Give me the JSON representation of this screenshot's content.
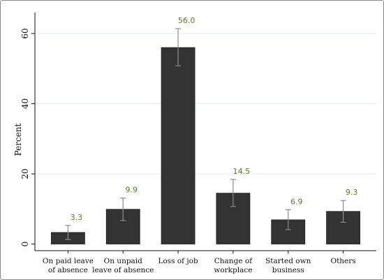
{
  "chart_data": {
    "type": "bar",
    "title": "",
    "xlabel": "",
    "ylabel": "Percent",
    "ylim": [
      0,
      65
    ],
    "yticks": [
      0,
      20,
      40,
      60
    ],
    "grid": true,
    "categories": [
      [
        "On paid leave",
        "of absence"
      ],
      [
        "On unpaid",
        "leave of absence"
      ],
      [
        "Loss of job"
      ],
      [
        "Change of",
        "workplace"
      ],
      [
        "Started own",
        "business"
      ],
      [
        "Others"
      ]
    ],
    "values": [
      3.3,
      9.9,
      56.0,
      14.5,
      6.9,
      9.3
    ],
    "value_labels": [
      "3.3",
      "9.9",
      "56.0",
      "14.5",
      "6.9",
      "9.3"
    ],
    "error_low": [
      1.3,
      6.7,
      50.8,
      10.7,
      4.1,
      6.2
    ],
    "error_high": [
      5.3,
      13.1,
      61.4,
      18.4,
      9.8,
      12.4
    ],
    "colors": {
      "bar": "#333333",
      "label": "#5a7f2c",
      "error_bar": "#8c8c8c",
      "grid": "#e4eef2",
      "axis": "#111111"
    }
  }
}
